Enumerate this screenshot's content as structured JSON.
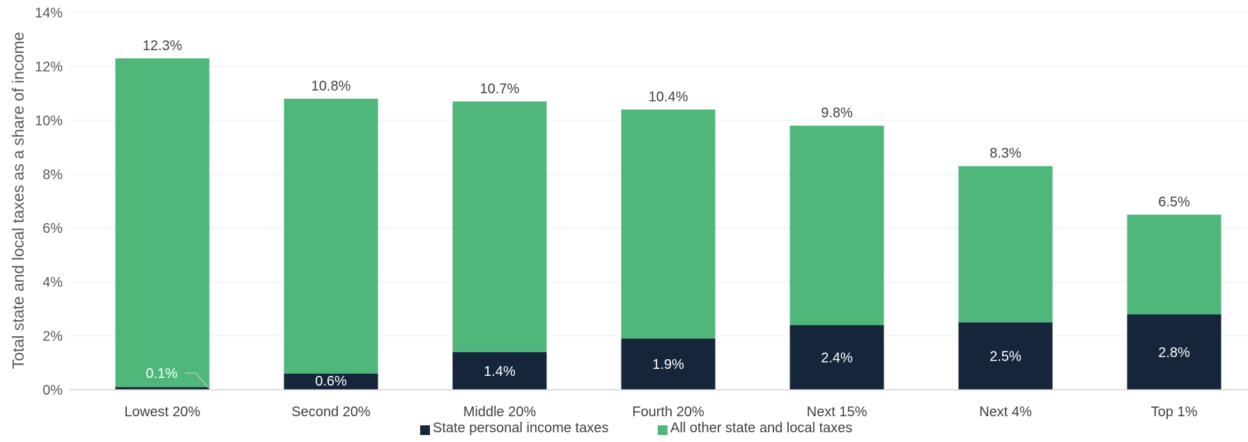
{
  "chart_data": {
    "type": "bar",
    "stacked": true,
    "categories": [
      "Lowest 20%",
      "Second 20%",
      "Middle 20%",
      "Fourth 20%",
      "Next 15%",
      "Next 4%",
      "Top 1%"
    ],
    "series": [
      {
        "name": "State personal income taxes",
        "color": "#15263b",
        "values": [
          0.1,
          0.6,
          1.4,
          1.9,
          2.4,
          2.5,
          2.8
        ],
        "labels": [
          "0.1%",
          "0.6%",
          "1.4%",
          "1.9%",
          "2.4%",
          "2.5%",
          "2.8%"
        ]
      },
      {
        "name": "All other state and local taxes",
        "color": "#4fb77a",
        "values": [
          12.2,
          10.2,
          9.3,
          8.5,
          7.4,
          5.8,
          3.7
        ]
      }
    ],
    "totals": [
      12.3,
      10.8,
      10.7,
      10.4,
      9.8,
      8.3,
      6.5
    ],
    "total_labels": [
      "12.3%",
      "10.8%",
      "10.7%",
      "10.4%",
      "9.8%",
      "8.3%",
      "6.5%"
    ],
    "ylabel": "Total state and local taxes as a share of income",
    "xlabel": "",
    "ylim": [
      0,
      14
    ],
    "yticks": [
      0,
      2,
      4,
      6,
      8,
      10,
      12,
      14
    ],
    "ytick_labels": [
      "0%",
      "2%",
      "4%",
      "6%",
      "8%",
      "10%",
      "12%",
      "14%"
    ],
    "grid": true,
    "legend_position": "bottom"
  }
}
